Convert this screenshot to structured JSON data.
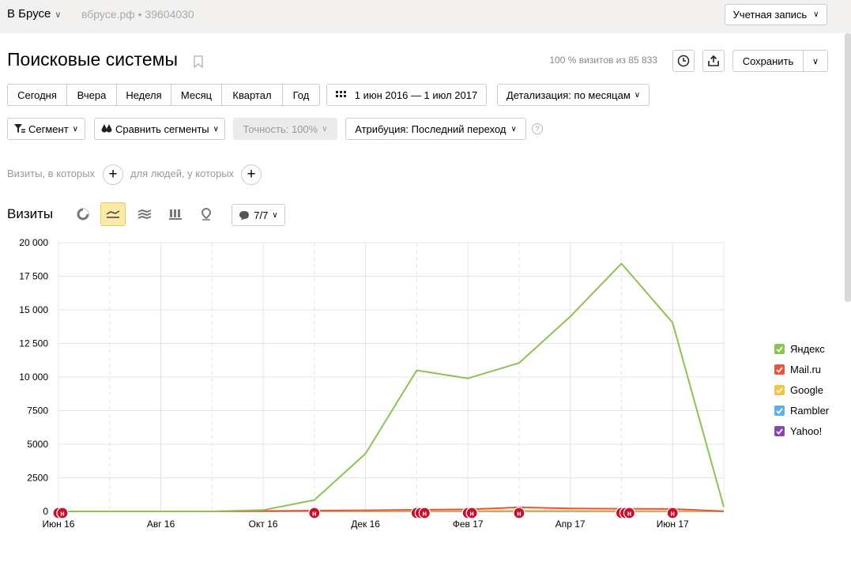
{
  "header": {
    "site_name": "В Брусе",
    "site_domain": "вбрусе.рф • 39604030",
    "account_label": "Учетная запись"
  },
  "page": {
    "title": "Поисковые системы",
    "visits_summary": "100 % визитов из 85 833",
    "save_label": "Сохранить"
  },
  "periods": [
    "Сегодня",
    "Вчера",
    "Неделя",
    "Месяц",
    "Квартал",
    "Год"
  ],
  "date_range": "1 июн 2016 — 1 июл 2017",
  "detail_label": "Детализация: по месяцам",
  "segment_label": "Сегмент",
  "compare_label": "Сравнить сегменты",
  "accuracy_label": "Точность: 100%",
  "attribution_label": "Атрибуция: Последний переход",
  "filters": {
    "visits_label": "Визиты, в которых",
    "people_label": "для людей, у которых"
  },
  "section_title": "Визиты",
  "series_count": "7/7",
  "icons": {
    "chevron": "chevron-down-icon",
    "clock": "clock-icon",
    "export": "export-icon",
    "calendar": "calendar-icon",
    "filter": "filter-icon",
    "compare": "compare-icon",
    "bookmark": "bookmark-icon",
    "comment": "comment-icon"
  },
  "chart_data": {
    "type": "line",
    "x": [
      "2016-06-01",
      "2016-07-01",
      "2016-08-01",
      "2016-09-01",
      "2016-10-01",
      "2016-11-01",
      "2016-12-01",
      "2017-01-01",
      "2017-02-01",
      "2017-03-01",
      "2017-04-01",
      "2017-05-01",
      "2017-06-01",
      "2017-07-01"
    ],
    "x_tick_labels": [
      "Июн 16",
      "Авг 16",
      "Окт 16",
      "Дек 16",
      "Фев 17",
      "Апр 17",
      "Июн 17"
    ],
    "y_tick_labels": [
      "0",
      "2500",
      "5000",
      "7500",
      "10 000",
      "12 500",
      "15 000",
      "17 500",
      "20 000"
    ],
    "ylim": [
      0,
      20000
    ],
    "grid": true,
    "legend_position": "right",
    "series": [
      {
        "name": "Яндекс",
        "color": "#8dc351",
        "values": [
          0,
          0,
          0,
          0,
          100,
          850,
          4300,
          10500,
          9900,
          11050,
          14500,
          18450,
          14050,
          350
        ]
      },
      {
        "name": "Mail.ru",
        "color": "#e8543f",
        "values": [
          0,
          0,
          0,
          0,
          30,
          60,
          80,
          120,
          150,
          300,
          220,
          200,
          180,
          10
        ]
      },
      {
        "name": "Google",
        "color": "#f5c243",
        "values": [
          0,
          0,
          0,
          0,
          10,
          20,
          30,
          40,
          50,
          60,
          60,
          50,
          40,
          5
        ]
      },
      {
        "name": "Rambler",
        "color": "#5eb0e5",
        "values": [
          0,
          0,
          0,
          0,
          5,
          10,
          10,
          15,
          15,
          20,
          20,
          15,
          15,
          2
        ]
      },
      {
        "name": "Yahoo!",
        "color": "#8e44ad",
        "values": [
          0,
          0,
          0,
          0,
          2,
          5,
          5,
          8,
          8,
          10,
          10,
          8,
          8,
          1
        ]
      }
    ],
    "annotation_label": "н",
    "annotations": [
      "2016-06-01",
      "2016-06-01",
      "2016-11-01",
      "2017-01-01",
      "2017-01-01",
      "2017-01-01",
      "2017-02-01",
      "2017-02-01",
      "2017-03-01",
      "2017-05-01",
      "2017-05-01",
      "2017-05-01",
      "2017-06-01"
    ]
  }
}
